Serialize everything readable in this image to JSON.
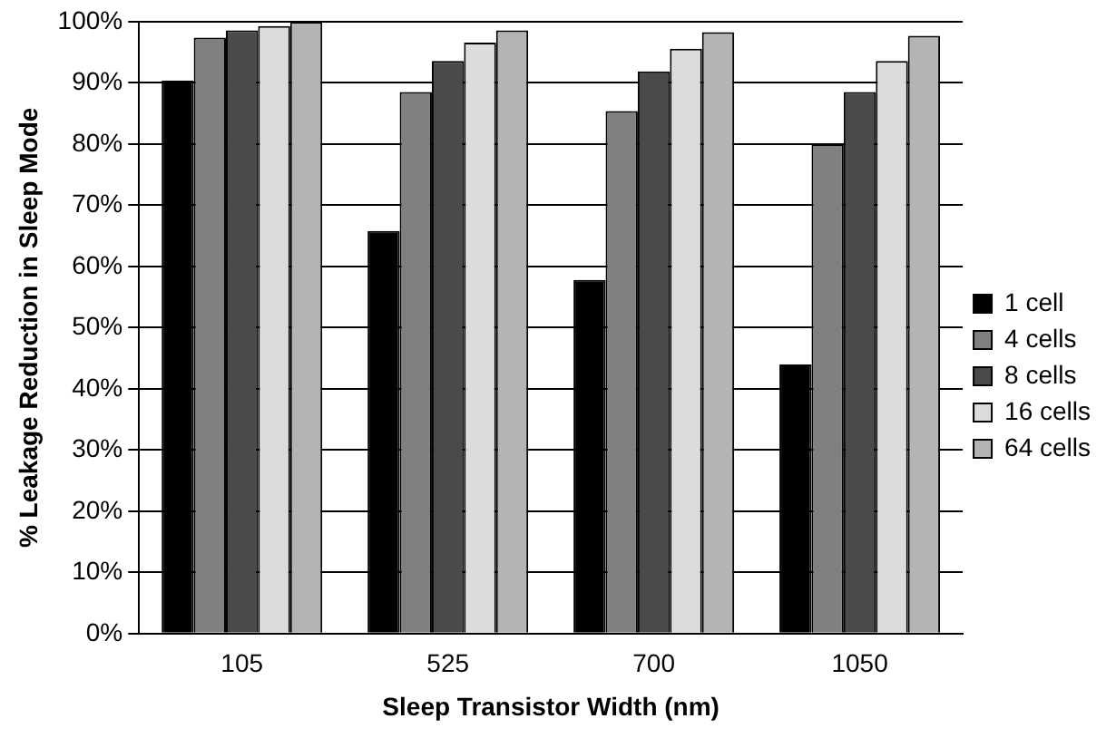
{
  "chart_data": {
    "type": "bar",
    "xlabel": "Sleep Transistor Width (nm)",
    "ylabel": "% Leakage Reduction in Sleep Mode",
    "categories": [
      "105",
      "525",
      "700",
      "1050"
    ],
    "series": [
      {
        "name": "1 cell",
        "color": "#000000",
        "values": [
          90.4,
          65.8,
          57.8,
          44
        ]
      },
      {
        "name": "4 cells",
        "color": "#808080",
        "values": [
          97.4,
          88.5,
          85.4,
          80
        ]
      },
      {
        "name": "8 cells",
        "color": "#4a4a4a",
        "values": [
          98.6,
          93.6,
          91.9,
          88.5
        ]
      },
      {
        "name": "16 cells",
        "color": "#dcdcdc",
        "values": [
          99.3,
          96.6,
          95.6,
          93.6
        ]
      },
      {
        "name": "64 cells",
        "color": "#b4b4b4",
        "values": [
          100,
          98.6,
          98.3,
          97.7
        ]
      }
    ],
    "ylim": [
      0,
      100
    ],
    "yticks": [
      {
        "value": 0,
        "label": "0%"
      },
      {
        "value": 10,
        "label": "10%"
      },
      {
        "value": 20,
        "label": "20%"
      },
      {
        "value": 30,
        "label": "30%"
      },
      {
        "value": 40,
        "label": "40%"
      },
      {
        "value": 50,
        "label": "50%"
      },
      {
        "value": 60,
        "label": "60%"
      },
      {
        "value": 70,
        "label": "70%"
      },
      {
        "value": 80,
        "label": "80%"
      },
      {
        "value": 90,
        "label": "90%"
      },
      {
        "value": 100,
        "label": "100%"
      }
    ],
    "grid": "y",
    "legend": "right"
  }
}
